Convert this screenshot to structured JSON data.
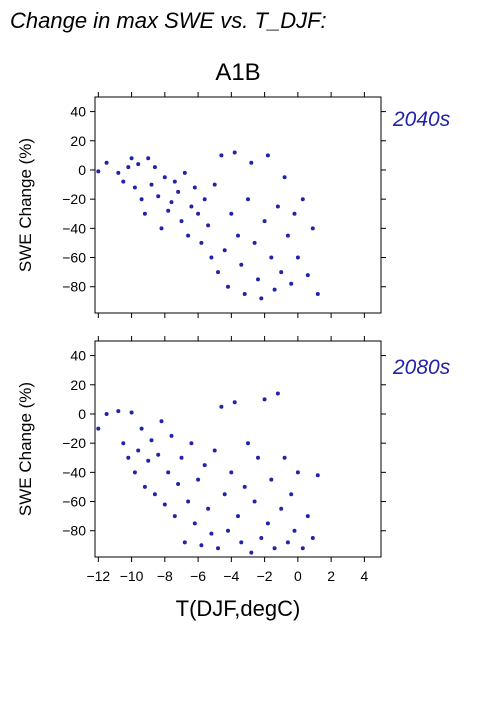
{
  "figure": {
    "title": "Change in max SWE vs. T_DJF:",
    "scenario": "A1B",
    "xlabel": "T(DJF,degC)",
    "ylabel": "SWE Change (%)",
    "point_color": "#2222aa",
    "label_color": "#2222aa"
  },
  "chart_data": [
    {
      "type": "scatter",
      "panel_label": "2040s",
      "xlabel": "",
      "ylabel": "SWE Change (%)",
      "xlim": [
        -12.2,
        5.0
      ],
      "ylim": [
        -98,
        50
      ],
      "x_ticks": [
        -12,
        -10,
        -8,
        -6,
        -4,
        -2,
        0,
        2,
        4
      ],
      "y_ticks": [
        40,
        20,
        0,
        -20,
        -40,
        -60,
        -80
      ],
      "points": [
        [
          -12.0,
          -1.0
        ],
        [
          -11.5,
          5.0
        ],
        [
          -10.8,
          -2.0
        ],
        [
          -10.5,
          -8.0
        ],
        [
          -10.2,
          2.0
        ],
        [
          -10.0,
          8.0
        ],
        [
          -9.8,
          -12.0
        ],
        [
          -9.6,
          4.0
        ],
        [
          -9.4,
          -20.0
        ],
        [
          -9.2,
          -30.0
        ],
        [
          -9.0,
          8.0
        ],
        [
          -8.8,
          -10.0
        ],
        [
          -8.6,
          2.0
        ],
        [
          -8.4,
          -18.0
        ],
        [
          -8.2,
          -40.0
        ],
        [
          -8.0,
          -5.0
        ],
        [
          -7.8,
          -28.0
        ],
        [
          -7.6,
          -22.0
        ],
        [
          -7.4,
          -8.0
        ],
        [
          -7.2,
          -15.0
        ],
        [
          -7.0,
          -35.0
        ],
        [
          -6.8,
          -2.0
        ],
        [
          -6.6,
          -45.0
        ],
        [
          -6.4,
          -25.0
        ],
        [
          -6.2,
          -12.0
        ],
        [
          -6.0,
          -30.0
        ],
        [
          -5.8,
          -50.0
        ],
        [
          -5.6,
          -20.0
        ],
        [
          -5.4,
          -38.0
        ],
        [
          -5.2,
          -60.0
        ],
        [
          -5.0,
          -10.0
        ],
        [
          -4.8,
          -70.0
        ],
        [
          -4.6,
          10.0
        ],
        [
          -4.4,
          -55.0
        ],
        [
          -4.2,
          -80.0
        ],
        [
          -4.0,
          -30.0
        ],
        [
          -3.8,
          12.0
        ],
        [
          -3.6,
          -45.0
        ],
        [
          -3.4,
          -65.0
        ],
        [
          -3.2,
          -85.0
        ],
        [
          -3.0,
          -20.0
        ],
        [
          -2.8,
          5.0
        ],
        [
          -2.6,
          -50.0
        ],
        [
          -2.4,
          -75.0
        ],
        [
          -2.2,
          -88.0
        ],
        [
          -2.0,
          -35.0
        ],
        [
          -1.8,
          10.0
        ],
        [
          -1.6,
          -60.0
        ],
        [
          -1.4,
          -82.0
        ],
        [
          -1.2,
          -25.0
        ],
        [
          -1.0,
          -70.0
        ],
        [
          -0.8,
          -5.0
        ],
        [
          -0.6,
          -45.0
        ],
        [
          -0.4,
          -78.0
        ],
        [
          -0.2,
          -30.0
        ],
        [
          0.0,
          -60.0
        ],
        [
          0.3,
          -20.0
        ],
        [
          0.6,
          -72.0
        ],
        [
          0.9,
          -40.0
        ],
        [
          1.2,
          -85.0
        ]
      ]
    },
    {
      "type": "scatter",
      "panel_label": "2080s",
      "xlabel": "T(DJF,degC)",
      "ylabel": "SWE Change (%)",
      "xlim": [
        -12.2,
        5.0
      ],
      "ylim": [
        -98,
        50
      ],
      "x_ticks": [
        -12,
        -10,
        -8,
        -6,
        -4,
        -2,
        0,
        2,
        4
      ],
      "y_ticks": [
        40,
        20,
        0,
        -20,
        -40,
        -60,
        -80
      ],
      "points": [
        [
          -12.0,
          -10.0
        ],
        [
          -11.5,
          0.0
        ],
        [
          -10.8,
          2.0
        ],
        [
          -10.5,
          -20.0
        ],
        [
          -10.2,
          -30.0
        ],
        [
          -10.0,
          1.0
        ],
        [
          -9.8,
          -40.0
        ],
        [
          -9.6,
          -25.0
        ],
        [
          -9.4,
          -10.0
        ],
        [
          -9.2,
          -50.0
        ],
        [
          -9.0,
          -32.0
        ],
        [
          -8.8,
          -18.0
        ],
        [
          -8.6,
          -55.0
        ],
        [
          -8.4,
          -28.0
        ],
        [
          -8.2,
          -5.0
        ],
        [
          -8.0,
          -62.0
        ],
        [
          -7.8,
          -40.0
        ],
        [
          -7.6,
          -15.0
        ],
        [
          -7.4,
          -70.0
        ],
        [
          -7.2,
          -48.0
        ],
        [
          -7.0,
          -30.0
        ],
        [
          -6.8,
          -88.0
        ],
        [
          -6.6,
          -60.0
        ],
        [
          -6.4,
          -20.0
        ],
        [
          -6.2,
          -75.0
        ],
        [
          -6.0,
          -45.0
        ],
        [
          -5.8,
          -90.0
        ],
        [
          -5.6,
          -35.0
        ],
        [
          -5.4,
          -65.0
        ],
        [
          -5.2,
          -82.0
        ],
        [
          -5.0,
          -25.0
        ],
        [
          -4.8,
          -92.0
        ],
        [
          -4.6,
          5.0
        ],
        [
          -4.4,
          -55.0
        ],
        [
          -4.2,
          -80.0
        ],
        [
          -4.0,
          -40.0
        ],
        [
          -3.8,
          8.0
        ],
        [
          -3.6,
          -70.0
        ],
        [
          -3.4,
          -88.0
        ],
        [
          -3.2,
          -50.0
        ],
        [
          -3.0,
          -20.0
        ],
        [
          -2.8,
          -95.0
        ],
        [
          -2.6,
          -60.0
        ],
        [
          -2.4,
          -30.0
        ],
        [
          -2.2,
          -85.0
        ],
        [
          -2.0,
          10.0
        ],
        [
          -1.8,
          -75.0
        ],
        [
          -1.6,
          -45.0
        ],
        [
          -1.4,
          -92.0
        ],
        [
          -1.2,
          14.0
        ],
        [
          -1.0,
          -65.0
        ],
        [
          -0.8,
          -30.0
        ],
        [
          -0.6,
          -88.0
        ],
        [
          -0.4,
          -55.0
        ],
        [
          -0.2,
          -80.0
        ],
        [
          0.0,
          -40.0
        ],
        [
          0.3,
          -92.0
        ],
        [
          0.6,
          -70.0
        ],
        [
          0.9,
          -85.0
        ],
        [
          1.2,
          -42.0
        ]
      ]
    }
  ]
}
